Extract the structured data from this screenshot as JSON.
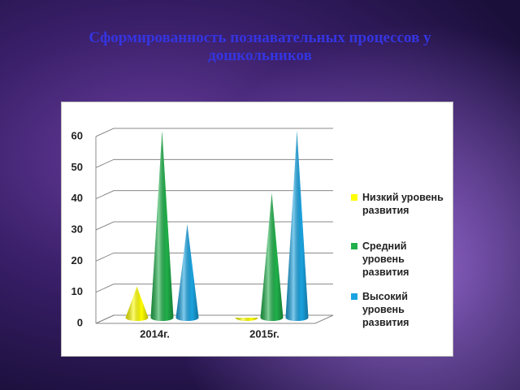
{
  "chart_data": {
    "type": "cone",
    "title": "Сформированность познавательных процессов у дошкольников",
    "categories": [
      "2014г.",
      "2015г."
    ],
    "series": [
      {
        "name": "Низкий уровень развития",
        "color": "#ffff00",
        "values": [
          10,
          0
        ]
      },
      {
        "name": "Средний уровень развития",
        "color": "#1fb04a",
        "values": [
          60,
          40
        ]
      },
      {
        "name": "Высокий уровень развития",
        "color": "#1aa3e0",
        "values": [
          30,
          60
        ]
      }
    ],
    "ylim": [
      0,
      60
    ],
    "yticks": [
      0,
      10,
      20,
      30,
      40,
      50,
      60
    ],
    "grid": true,
    "legend": "right"
  }
}
